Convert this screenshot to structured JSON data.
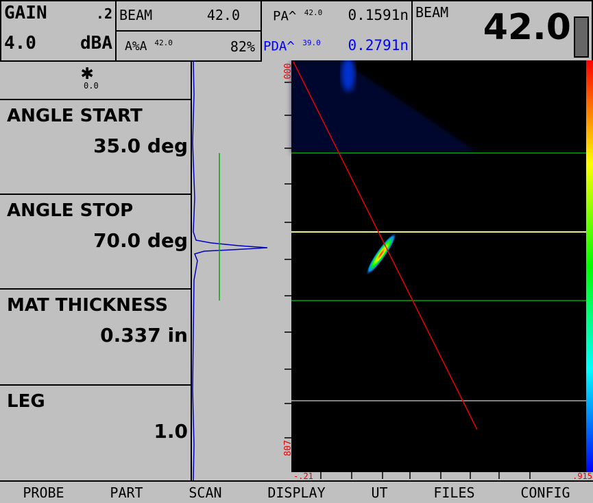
{
  "header": {
    "gain_label": "GAIN",
    "gain_step": ".2",
    "gain_value": "4.0",
    "gain_unit": "dBA",
    "beam_label": "BEAM",
    "beam_value": "42.0",
    "amp_label": "A%A",
    "amp_angle": "42.0",
    "amp_value": "82%",
    "pa_label": "PA^",
    "pa_angle": "42.0",
    "pa_value": "0.1591n",
    "pda_label": "PDA^",
    "pda_angle": "39.0",
    "pda_value": "0.2791n",
    "big_beam_label": "BEAM",
    "big_beam_value": "42.0"
  },
  "panel": {
    "icon_value": "0.0",
    "items": [
      {
        "label": "ANGLE START",
        "value": "35.0 deg"
      },
      {
        "label": "ANGLE STOP",
        "value": "70.0 deg"
      },
      {
        "label": "MAT THICKNESS",
        "value": "0.337 in"
      },
      {
        "label": "LEG",
        "value": "1.0"
      }
    ]
  },
  "scan": {
    "depth_start": ".000",
    "depth_end": "807",
    "x_start": "-.21",
    "x_end": ".915"
  },
  "menu": [
    "PROBE",
    "PART",
    "SCAN",
    "DISPLAY",
    "UT",
    "FILES",
    "CONFIG"
  ]
}
